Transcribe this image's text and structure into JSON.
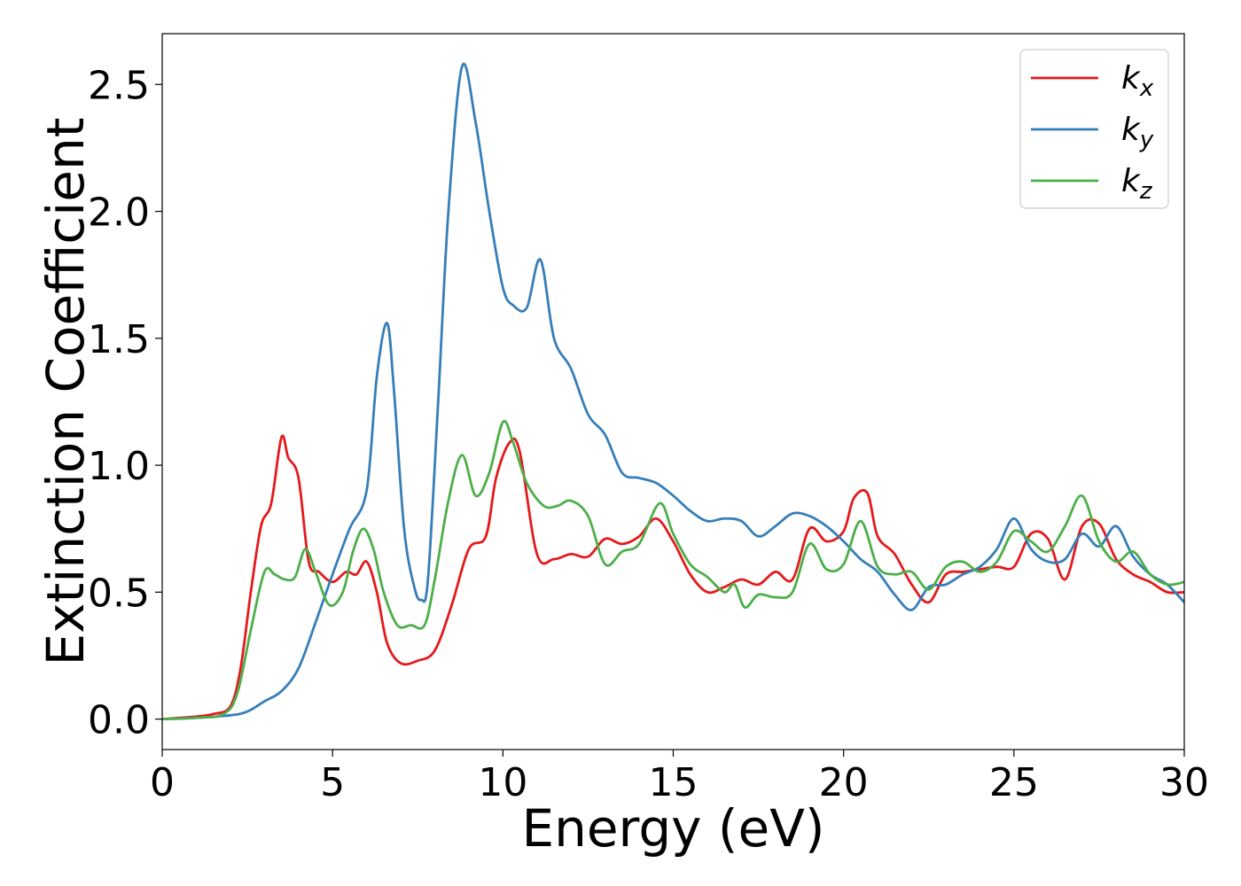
{
  "chart_data": {
    "type": "line",
    "xlabel": "Energy (eV)",
    "ylabel": "Extinction Coefficient",
    "xlim": [
      0,
      30
    ],
    "ylim": [
      -0.12,
      2.7
    ],
    "xticks": [
      0,
      5,
      10,
      15,
      20,
      25,
      30
    ],
    "xtick_labels": [
      "0",
      "5",
      "10",
      "15",
      "20",
      "25",
      "30"
    ],
    "yticks": [
      0.0,
      0.5,
      1.0,
      1.5,
      2.0,
      2.5
    ],
    "ytick_labels": [
      "0.0",
      "0.5",
      "1.0",
      "1.5",
      "2.0",
      "2.5"
    ],
    "grid": false,
    "legend_position": "top-right",
    "series": [
      {
        "name": "k",
        "subscript": "x",
        "color": "#e41a1c",
        "x": [
          0,
          1,
          1.5,
          2,
          2.3,
          2.6,
          2.9,
          3.2,
          3.5,
          3.7,
          4.0,
          4.3,
          4.6,
          5.0,
          5.4,
          5.7,
          6.0,
          6.3,
          6.6,
          7.0,
          7.5,
          8.0,
          8.5,
          9.0,
          9.5,
          9.8,
          10.2,
          10.5,
          11.0,
          11.5,
          12.0,
          12.5,
          13.0,
          13.5,
          14.0,
          14.5,
          15.0,
          15.5,
          16.0,
          16.5,
          17.0,
          17.5,
          18.0,
          18.5,
          19.0,
          19.5,
          20.0,
          20.3,
          20.7,
          21.0,
          21.5,
          22.0,
          22.5,
          23.0,
          23.5,
          24.0,
          24.5,
          25.0,
          25.5,
          26.0,
          26.5,
          27.0,
          27.5,
          28.0,
          28.5,
          29.0,
          29.5,
          30.0
        ],
        "y": [
          0.0,
          0.01,
          0.02,
          0.05,
          0.2,
          0.5,
          0.76,
          0.85,
          1.11,
          1.03,
          0.95,
          0.62,
          0.58,
          0.54,
          0.58,
          0.57,
          0.62,
          0.5,
          0.3,
          0.22,
          0.23,
          0.27,
          0.45,
          0.67,
          0.72,
          0.95,
          1.09,
          1.05,
          0.65,
          0.63,
          0.65,
          0.64,
          0.71,
          0.69,
          0.72,
          0.79,
          0.7,
          0.57,
          0.5,
          0.52,
          0.55,
          0.53,
          0.58,
          0.55,
          0.75,
          0.7,
          0.74,
          0.87,
          0.89,
          0.72,
          0.65,
          0.53,
          0.46,
          0.57,
          0.58,
          0.59,
          0.6,
          0.6,
          0.73,
          0.71,
          0.55,
          0.76,
          0.77,
          0.63,
          0.57,
          0.54,
          0.5,
          0.5
        ]
      },
      {
        "name": "k",
        "subscript": "y",
        "color": "#377eb8",
        "x": [
          0,
          1,
          2,
          2.5,
          3.0,
          3.5,
          4.0,
          4.5,
          5.0,
          5.5,
          6.0,
          6.3,
          6.6,
          6.8,
          7.1,
          7.4,
          7.6,
          7.8,
          8.1,
          8.4,
          8.8,
          9.2,
          9.6,
          10.0,
          10.3,
          10.7,
          11.1,
          11.5,
          12.0,
          12.5,
          13.0,
          13.5,
          14.0,
          14.5,
          15.0,
          15.5,
          16.0,
          16.5,
          17.0,
          17.5,
          18.0,
          18.5,
          19.0,
          19.5,
          20.0,
          20.5,
          21.0,
          21.5,
          22.0,
          22.5,
          23.0,
          23.5,
          24.0,
          24.5,
          25.0,
          25.5,
          26.0,
          26.5,
          27.0,
          27.5,
          28.0,
          28.5,
          29.0,
          29.5,
          30.0
        ],
        "y": [
          0.0,
          0.005,
          0.015,
          0.03,
          0.07,
          0.11,
          0.2,
          0.38,
          0.57,
          0.75,
          0.9,
          1.35,
          1.56,
          1.3,
          0.75,
          0.52,
          0.47,
          0.55,
          1.25,
          2.0,
          2.57,
          2.35,
          2.0,
          1.7,
          1.63,
          1.62,
          1.81,
          1.5,
          1.38,
          1.2,
          1.12,
          0.97,
          0.95,
          0.93,
          0.88,
          0.82,
          0.78,
          0.79,
          0.78,
          0.72,
          0.76,
          0.81,
          0.8,
          0.76,
          0.7,
          0.63,
          0.58,
          0.49,
          0.43,
          0.52,
          0.53,
          0.57,
          0.6,
          0.67,
          0.79,
          0.67,
          0.62,
          0.63,
          0.73,
          0.68,
          0.76,
          0.64,
          0.57,
          0.53,
          0.46
        ]
      },
      {
        "name": "k",
        "subscript": "z",
        "color": "#4daf4a",
        "x": [
          0,
          1,
          1.8,
          2.2,
          2.6,
          3.0,
          3.3,
          3.6,
          3.9,
          4.2,
          4.5,
          4.9,
          5.3,
          5.6,
          5.9,
          6.2,
          6.5,
          6.9,
          7.3,
          7.7,
          8.0,
          8.4,
          8.8,
          9.2,
          9.6,
          10.0,
          10.3,
          10.7,
          11.2,
          11.6,
          12.0,
          12.5,
          13.0,
          13.5,
          14.0,
          14.6,
          15.0,
          15.5,
          16.0,
          16.5,
          16.8,
          17.1,
          17.5,
          18.0,
          18.5,
          19.0,
          19.5,
          20.0,
          20.5,
          21.0,
          21.5,
          22.0,
          22.5,
          23.0,
          23.5,
          24.0,
          24.5,
          25.0,
          25.5,
          26.0,
          26.5,
          27.0,
          27.5,
          28.0,
          28.5,
          29.0,
          29.5,
          30.0
        ],
        "y": [
          0.0,
          0.005,
          0.02,
          0.1,
          0.35,
          0.58,
          0.57,
          0.55,
          0.56,
          0.67,
          0.58,
          0.45,
          0.5,
          0.66,
          0.75,
          0.67,
          0.5,
          0.37,
          0.37,
          0.37,
          0.55,
          0.86,
          1.04,
          0.88,
          0.97,
          1.17,
          1.09,
          0.93,
          0.84,
          0.84,
          0.86,
          0.8,
          0.61,
          0.66,
          0.69,
          0.85,
          0.73,
          0.61,
          0.56,
          0.5,
          0.53,
          0.44,
          0.49,
          0.48,
          0.5,
          0.69,
          0.59,
          0.61,
          0.78,
          0.6,
          0.57,
          0.58,
          0.51,
          0.6,
          0.62,
          0.58,
          0.62,
          0.74,
          0.7,
          0.66,
          0.76,
          0.88,
          0.7,
          0.62,
          0.66,
          0.57,
          0.53,
          0.54
        ]
      }
    ]
  }
}
